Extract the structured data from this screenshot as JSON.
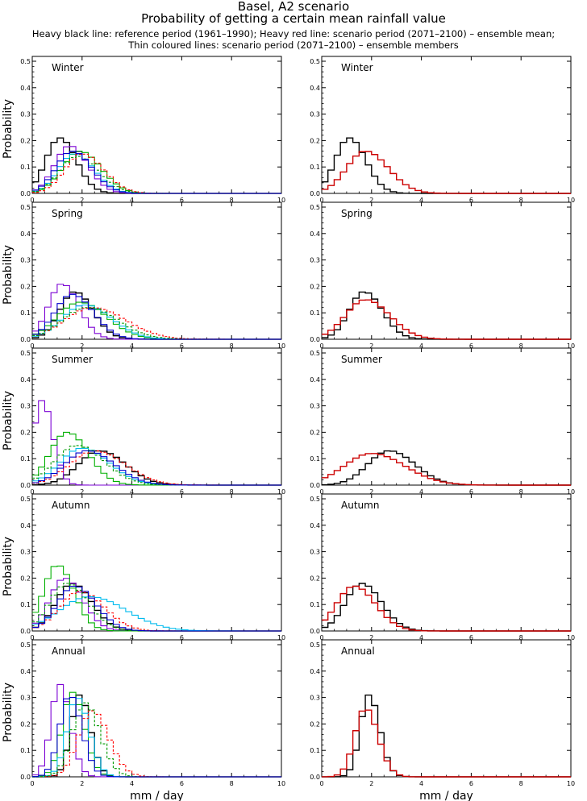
{
  "header": {
    "title": "Basel, A2 scenario",
    "subtitle": "Probability of getting a certain mean rainfall value",
    "note_line1": "Heavy black line: reference period (1961–1990); Heavy red line: scenario period (2071–2100) – ensemble mean;",
    "note_line2": "Thin coloured lines: scenario period (2071–2100) – ensemble members"
  },
  "colors": {
    "reference": "#000000",
    "scenario_mean": "#cc0000",
    "members": [
      "#7b00d4",
      "#00b000",
      "#00bbee",
      "#ff0000",
      "#009900",
      "#0000cc"
    ]
  },
  "chart_data": [
    {
      "type": "line",
      "panel": "left",
      "season": "Winter",
      "ylabel": "Probability",
      "xlabel": "",
      "xlim": [
        0,
        10
      ],
      "ylim": [
        0,
        0.5
      ],
      "xticks": [
        "0",
        "2",
        "4",
        "6",
        "8",
        "10"
      ],
      "yticks": [
        "0.0",
        "0.1",
        "0.2",
        "0.3",
        "0.4",
        "0.5"
      ],
      "series": [
        {
          "role": "reference",
          "center": 1.1,
          "width": 0.55,
          "peak": 0.21
        },
        {
          "role": "member",
          "color": "#7b00d4",
          "center": 1.5,
          "width": 0.6,
          "peak": 0.18
        },
        {
          "role": "member",
          "color": "#00b000",
          "center": 1.9,
          "width": 0.7,
          "peak": 0.16
        },
        {
          "role": "member",
          "color": "#00bbee",
          "center": 1.7,
          "width": 0.65,
          "peak": 0.15
        },
        {
          "role": "member",
          "color": "#ff0000",
          "center": 2.0,
          "width": 0.7,
          "peak": 0.15,
          "dashed": true
        },
        {
          "role": "member",
          "color": "#009900",
          "center": 1.8,
          "width": 0.7,
          "peak": 0.14,
          "dashed": true
        },
        {
          "role": "member",
          "color": "#0000cc",
          "center": 1.6,
          "width": 0.65,
          "peak": 0.16
        }
      ]
    },
    {
      "type": "line",
      "panel": "right",
      "season": "Winter",
      "ylabel": "",
      "xlabel": "",
      "xlim": [
        0,
        10
      ],
      "ylim": [
        0,
        0.5
      ],
      "xticks": [
        "0",
        "2",
        "4",
        "6",
        "8",
        "10"
      ],
      "yticks": [
        "0.0",
        "0.1",
        "0.2",
        "0.3",
        "0.4",
        "0.5"
      ],
      "series": [
        {
          "role": "reference",
          "center": 1.1,
          "width": 0.55,
          "peak": 0.21
        },
        {
          "role": "scenario_mean",
          "center": 1.75,
          "width": 0.75,
          "peak": 0.16
        }
      ]
    },
    {
      "type": "line",
      "panel": "left",
      "season": "Spring",
      "ylabel": "Probability",
      "xlabel": "",
      "xlim": [
        0,
        10
      ],
      "ylim": [
        0,
        0.5
      ],
      "xticks": [
        "0",
        "2",
        "4",
        "6",
        "8",
        "10"
      ],
      "yticks": [
        "0.0",
        "0.1",
        "0.2",
        "0.3",
        "0.4",
        "0.5"
      ],
      "series": [
        {
          "role": "reference",
          "center": 1.7,
          "width": 0.6,
          "peak": 0.18
        },
        {
          "role": "member",
          "color": "#7b00d4",
          "center": 1.2,
          "width": 0.55,
          "peak": 0.21
        },
        {
          "role": "member",
          "color": "#00b000",
          "center": 1.9,
          "width": 0.9,
          "peak": 0.14
        },
        {
          "role": "member",
          "color": "#00bbee",
          "center": 2.1,
          "width": 0.9,
          "peak": 0.13
        },
        {
          "role": "member",
          "color": "#ff0000",
          "center": 2.4,
          "width": 1.1,
          "peak": 0.12,
          "dashed": true
        },
        {
          "role": "member",
          "color": "#009900",
          "center": 2.2,
          "width": 1.0,
          "peak": 0.12,
          "dashed": true
        },
        {
          "role": "member",
          "color": "#0000cc",
          "center": 1.6,
          "width": 0.7,
          "peak": 0.17
        }
      ]
    },
    {
      "type": "line",
      "panel": "right",
      "season": "Spring",
      "ylabel": "",
      "xlabel": "",
      "xlim": [
        0,
        10
      ],
      "ylim": [
        0,
        0.5
      ],
      "xticks": [
        "0",
        "2",
        "4",
        "6",
        "8",
        "10"
      ],
      "yticks": [
        "0.0",
        "0.1",
        "0.2",
        "0.3",
        "0.4",
        "0.5"
      ],
      "series": [
        {
          "role": "reference",
          "center": 1.7,
          "width": 0.6,
          "peak": 0.18
        },
        {
          "role": "scenario_mean",
          "center": 1.75,
          "width": 0.8,
          "peak": 0.15
        }
      ]
    },
    {
      "type": "line",
      "panel": "left",
      "season": "Summer",
      "ylabel": "Probability",
      "xlabel": "",
      "xlim": [
        0,
        10
      ],
      "ylim": [
        0,
        0.5
      ],
      "xticks": [
        "0",
        "2",
        "4",
        "6",
        "8",
        "10"
      ],
      "yticks": [
        "0.0",
        "0.1",
        "0.2",
        "0.3",
        "0.4",
        "0.5"
      ],
      "series": [
        {
          "role": "reference",
          "center": 2.7,
          "width": 0.85,
          "peak": 0.13
        },
        {
          "role": "member",
          "color": "#7b00d4",
          "center": 0.4,
          "width": 0.35,
          "peak": 0.32
        },
        {
          "role": "member",
          "color": "#00b000",
          "center": 1.4,
          "width": 0.7,
          "peak": 0.2
        },
        {
          "role": "member",
          "color": "#00bbee",
          "center": 2.0,
          "width": 0.9,
          "peak": 0.14
        },
        {
          "role": "member",
          "color": "#ff0000",
          "center": 2.5,
          "width": 1.0,
          "peak": 0.13,
          "dashed": true
        },
        {
          "role": "member",
          "color": "#009900",
          "center": 1.8,
          "width": 0.9,
          "peak": 0.15,
          "dashed": true
        },
        {
          "role": "member",
          "color": "#0000cc",
          "center": 2.2,
          "width": 0.9,
          "peak": 0.13
        }
      ]
    },
    {
      "type": "line",
      "panel": "right",
      "season": "Summer",
      "ylabel": "",
      "xlabel": "",
      "xlim": [
        0,
        10
      ],
      "ylim": [
        0,
        0.5
      ],
      "xticks": [
        "0",
        "2",
        "4",
        "6",
        "8",
        "10"
      ],
      "yticks": [
        "0.0",
        "0.1",
        "0.2",
        "0.3",
        "0.4",
        "0.5"
      ],
      "series": [
        {
          "role": "reference",
          "center": 2.7,
          "width": 0.85,
          "peak": 0.13
        },
        {
          "role": "scenario_mean",
          "center": 2.0,
          "width": 1.1,
          "peak": 0.12
        }
      ]
    },
    {
      "type": "line",
      "panel": "left",
      "season": "Autumn",
      "ylabel": "Probability",
      "xlabel": "",
      "xlim": [
        0,
        10
      ],
      "ylim": [
        0,
        0.5
      ],
      "xticks": [
        "0",
        "2",
        "4",
        "6",
        "8",
        "10"
      ],
      "yticks": [
        "0.0",
        "0.1",
        "0.2",
        "0.3",
        "0.4",
        "0.5"
      ],
      "series": [
        {
          "role": "reference",
          "center": 1.6,
          "width": 0.65,
          "peak": 0.18
        },
        {
          "role": "member",
          "color": "#7b00d4",
          "center": 1.3,
          "width": 0.6,
          "peak": 0.2
        },
        {
          "role": "member",
          "color": "#00b000",
          "center": 1.0,
          "width": 0.55,
          "peak": 0.25
        },
        {
          "role": "member",
          "color": "#00bbee",
          "center": 2.3,
          "width": 1.2,
          "peak": 0.13
        },
        {
          "role": "member",
          "color": "#ff0000",
          "center": 1.9,
          "width": 0.8,
          "peak": 0.15,
          "dashed": true
        },
        {
          "role": "member",
          "color": "#009900",
          "center": 1.4,
          "width": 0.7,
          "peak": 0.18,
          "dashed": true
        },
        {
          "role": "member",
          "color": "#0000cc",
          "center": 1.7,
          "width": 0.7,
          "peak": 0.17
        }
      ]
    },
    {
      "type": "line",
      "panel": "right",
      "season": "Autumn",
      "ylabel": "",
      "xlabel": "",
      "xlim": [
        0,
        10
      ],
      "ylim": [
        0,
        0.5
      ],
      "xticks": [
        "0",
        "2",
        "4",
        "6",
        "8",
        "10"
      ],
      "yticks": [
        "0.0",
        "0.1",
        "0.2",
        "0.3",
        "0.4",
        "0.5"
      ],
      "series": [
        {
          "role": "reference",
          "center": 1.6,
          "width": 0.65,
          "peak": 0.18
        },
        {
          "role": "scenario_mean",
          "center": 1.3,
          "width": 0.7,
          "peak": 0.17
        }
      ]
    },
    {
      "type": "line",
      "panel": "left",
      "season": "Annual",
      "ylabel": "Probability",
      "xlabel": "mm / day",
      "xlim": [
        0,
        10
      ],
      "ylim": [
        0,
        0.5
      ],
      "xticks": [
        "0",
        "2",
        "4",
        "6",
        "8",
        "10"
      ],
      "yticks": [
        "0.0",
        "0.1",
        "0.2",
        "0.3",
        "0.4",
        "0.5"
      ],
      "series": [
        {
          "role": "reference",
          "center": 1.9,
          "width": 0.35,
          "peak": 0.31
        },
        {
          "role": "member",
          "color": "#7b00d4",
          "center": 1.1,
          "width": 0.35,
          "peak": 0.35
        },
        {
          "role": "member",
          "color": "#00b000",
          "center": 1.6,
          "width": 0.4,
          "peak": 0.32
        },
        {
          "role": "member",
          "color": "#00bbee",
          "center": 1.8,
          "width": 0.4,
          "peak": 0.3
        },
        {
          "role": "member",
          "color": "#ff0000",
          "center": 2.4,
          "width": 0.55,
          "peak": 0.25,
          "dashed": true
        },
        {
          "role": "member",
          "color": "#009900",
          "center": 2.1,
          "width": 0.5,
          "peak": 0.28,
          "dashed": true
        },
        {
          "role": "member",
          "color": "#0000cc",
          "center": 1.5,
          "width": 0.4,
          "peak": 0.31
        }
      ]
    },
    {
      "type": "line",
      "panel": "right",
      "season": "Annual",
      "ylabel": "",
      "xlabel": "mm / day",
      "xlim": [
        0,
        10
      ],
      "ylim": [
        0,
        0.5
      ],
      "xticks": [
        "0",
        "2",
        "4",
        "6",
        "8",
        "10"
      ],
      "yticks": [
        "0.0",
        "0.1",
        "0.2",
        "0.3",
        "0.4",
        "0.5"
      ],
      "series": [
        {
          "role": "reference",
          "center": 1.9,
          "width": 0.35,
          "peak": 0.31
        },
        {
          "role": "scenario_mean",
          "center": 1.75,
          "width": 0.42,
          "peak": 0.26
        }
      ]
    }
  ]
}
